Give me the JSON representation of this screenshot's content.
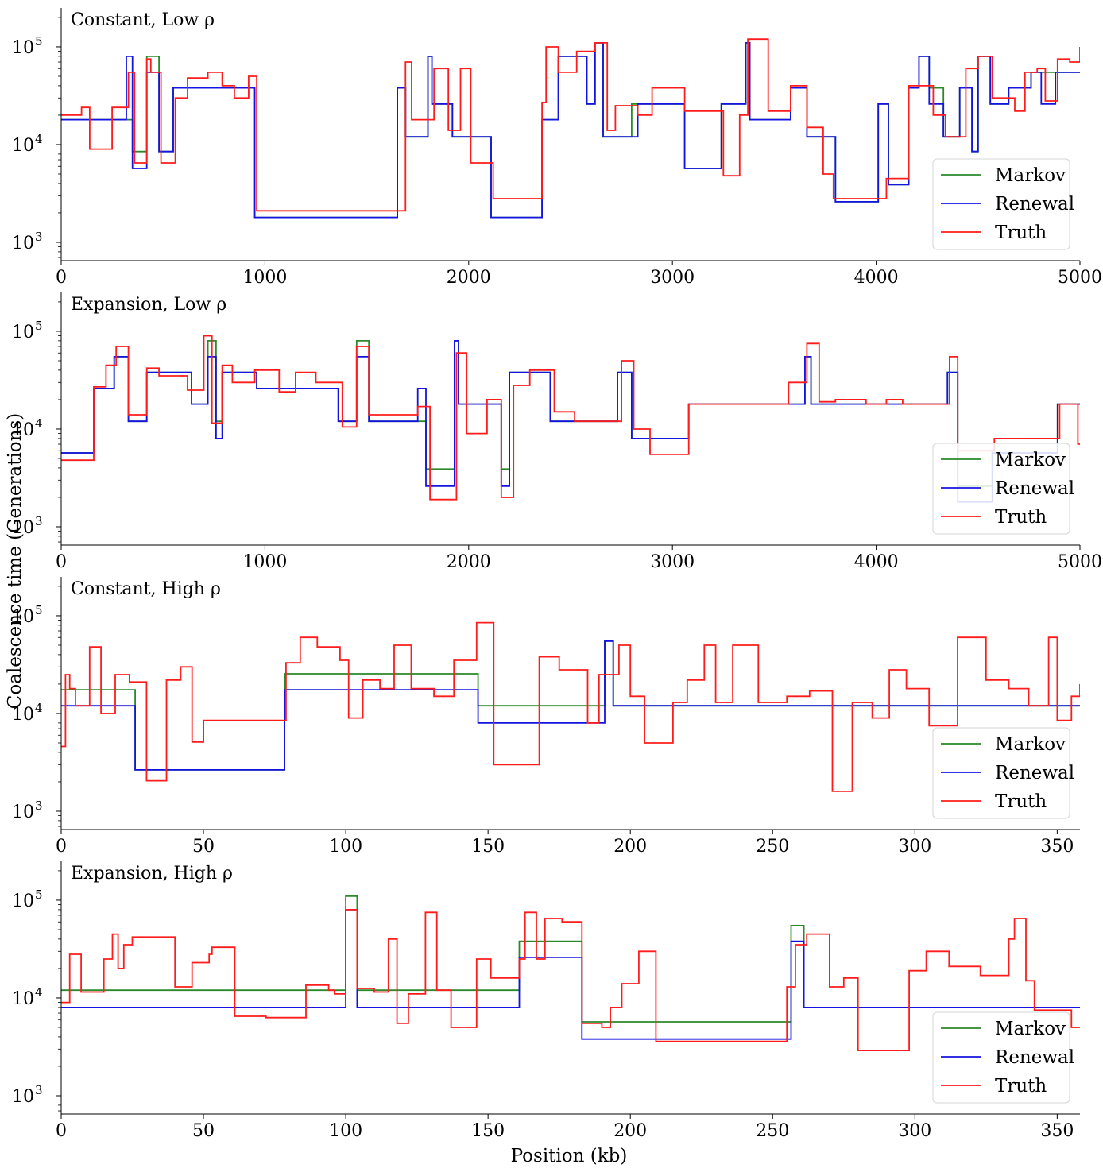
{
  "figure": {
    "ylabel": "Coalescence time (Generations)",
    "xlabel": "Position (kb)"
  },
  "legend_labels": [
    "Markov",
    "Renewal",
    "Truth"
  ],
  "colors": {
    "markov": "#2a8a2a",
    "renewal": "#1414e0",
    "truth": "#ff1c1c"
  },
  "chart_data": [
    {
      "type": "line",
      "title": "Constant, Low ρ",
      "xlim": [
        0,
        5000
      ],
      "ylim": [
        650,
        250000
      ],
      "yscale": "log",
      "xticks": [
        0,
        1000,
        2000,
        3000,
        4000,
        5000
      ],
      "ytick_labels": [
        "10",
        "10",
        "10"
      ],
      "ytick_exponents": [
        "3",
        "4",
        "5"
      ],
      "legend_position": "lower-right",
      "series": [
        {
          "name": "Markov",
          "x": [
            0,
            320,
            350,
            420,
            480,
            550,
            950,
            1650,
            1690,
            1800,
            1820,
            1920,
            2110,
            2360,
            2390,
            2440,
            2580,
            2620,
            2660,
            2780,
            2800,
            2830,
            3060,
            3240,
            3360,
            3380,
            3580,
            3660,
            3800,
            4010,
            4060,
            4160,
            4210,
            4260,
            4330,
            4410,
            4470,
            4500,
            4560,
            4650,
            4760,
            4810,
            4880,
            5000
          ],
          "y": [
            18000,
            18000,
            8500,
            80000,
            8500,
            38000,
            1800,
            38000,
            12000,
            80000,
            26000,
            12000,
            1800,
            18000,
            18000,
            80000,
            26000,
            110000,
            12000,
            12000,
            26000,
            26000,
            5700,
            26000,
            110000,
            18000,
            38000,
            12000,
            2600,
            26000,
            3900,
            38000,
            80000,
            38000,
            12000,
            38000,
            8500,
            80000,
            26000,
            38000,
            55000,
            55000,
            55000,
            55000
          ]
        },
        {
          "name": "Renewal",
          "x": [
            0,
            320,
            350,
            420,
            480,
            550,
            950,
            1650,
            1690,
            1800,
            1820,
            1920,
            2110,
            2360,
            2390,
            2440,
            2580,
            2620,
            2660,
            2780,
            2800,
            2830,
            3060,
            3240,
            3360,
            3380,
            3580,
            3660,
            3800,
            4010,
            4060,
            4160,
            4210,
            4260,
            4330,
            4410,
            4470,
            4500,
            4560,
            4650,
            4760,
            4810,
            4880,
            5000
          ],
          "y": [
            18000,
            80000,
            5700,
            55000,
            8500,
            38000,
            1800,
            38000,
            12000,
            80000,
            26000,
            12000,
            1800,
            18000,
            18000,
            80000,
            26000,
            110000,
            12000,
            12000,
            12000,
            26000,
            5700,
            26000,
            110000,
            18000,
            38000,
            12000,
            2600,
            26000,
            3900,
            38000,
            80000,
            26000,
            12000,
            38000,
            8500,
            80000,
            26000,
            38000,
            55000,
            26000,
            55000,
            55000
          ]
        },
        {
          "name": "Truth",
          "x": [
            0,
            100,
            140,
            250,
            330,
            360,
            420,
            440,
            490,
            560,
            620,
            720,
            790,
            850,
            920,
            960,
            1650,
            1690,
            1720,
            1830,
            1900,
            1960,
            2010,
            2120,
            2180,
            2360,
            2380,
            2440,
            2530,
            2620,
            2680,
            2720,
            2830,
            2900,
            3060,
            3250,
            3330,
            3370,
            3470,
            3580,
            3660,
            3740,
            3790,
            4000,
            4050,
            4160,
            4280,
            4340,
            4440,
            4500,
            4570,
            4680,
            4730,
            4790,
            4830,
            4890,
            4950,
            5000
          ],
          "y": [
            20000,
            24000,
            9000,
            24000,
            55000,
            6500,
            75000,
            55000,
            6500,
            30000,
            48000,
            55000,
            40000,
            30000,
            50000,
            2100,
            2100,
            70000,
            18000,
            60000,
            14000,
            60000,
            6500,
            2800,
            2800,
            27000,
            100000,
            55000,
            90000,
            110000,
            14000,
            25000,
            20000,
            38000,
            22000,
            4800,
            20000,
            120000,
            22000,
            40000,
            15000,
            5000,
            2800,
            2800,
            4500,
            40000,
            20000,
            12000,
            60000,
            80000,
            30000,
            22000,
            55000,
            60000,
            28000,
            75000,
            70000,
            100000
          ]
        }
      ]
    },
    {
      "type": "line",
      "title": "Expansion, Low ρ",
      "xlim": [
        0,
        5000
      ],
      "ylim": [
        650,
        250000
      ],
      "yscale": "log",
      "xticks": [
        0,
        1000,
        2000,
        3000,
        4000,
        5000
      ],
      "ytick_labels": [
        "10",
        "10",
        "10"
      ],
      "ytick_exponents": [
        "3",
        "4",
        "5"
      ],
      "legend_position": "lower-right",
      "series": [
        {
          "name": "Markov",
          "x": [
            0,
            160,
            260,
            330,
            420,
            640,
            720,
            760,
            790,
            960,
            1360,
            1450,
            1510,
            1750,
            1790,
            1930,
            1950,
            2160,
            2200,
            2400,
            2730,
            2800,
            2820,
            3080,
            3650,
            3680,
            4350,
            4400,
            4570,
            4890,
            5000
          ],
          "y": [
            5700,
            26000,
            55000,
            12000,
            38000,
            18000,
            80000,
            12000,
            38000,
            26000,
            12000,
            80000,
            12000,
            12000,
            3900,
            80000,
            18000,
            3900,
            38000,
            12000,
            38000,
            8000,
            8000,
            18000,
            55000,
            18000,
            38000,
            2600,
            5700,
            18000,
            18000
          ]
        },
        {
          "name": "Renewal",
          "x": [
            0,
            160,
            260,
            330,
            420,
            640,
            720,
            760,
            790,
            960,
            1360,
            1450,
            1510,
            1750,
            1790,
            1930,
            1950,
            2160,
            2200,
            2400,
            2730,
            2800,
            2820,
            3080,
            3650,
            3680,
            4350,
            4400,
            4570,
            4890,
            5000
          ],
          "y": [
            5700,
            26000,
            55000,
            12000,
            38000,
            18000,
            55000,
            8000,
            38000,
            26000,
            12000,
            55000,
            12000,
            26000,
            2600,
            80000,
            18000,
            2600,
            38000,
            12000,
            38000,
            8000,
            8000,
            18000,
            55000,
            18000,
            38000,
            1800,
            5700,
            18000,
            18000
          ]
        },
        {
          "name": "Truth",
          "x": [
            0,
            160,
            220,
            270,
            330,
            420,
            480,
            620,
            700,
            740,
            790,
            840,
            950,
            1070,
            1150,
            1250,
            1380,
            1450,
            1510,
            1750,
            1810,
            1940,
            1990,
            2090,
            2160,
            2220,
            2300,
            2420,
            2520,
            2750,
            2810,
            2890,
            3080,
            3170,
            3400,
            3570,
            3660,
            3720,
            3800,
            3950,
            4050,
            4130,
            4360,
            4400,
            4580,
            4900,
            4990,
            5000
          ],
          "y": [
            4800,
            27000,
            45000,
            70000,
            14000,
            42000,
            35000,
            25000,
            90000,
            11500,
            45000,
            30000,
            40000,
            24000,
            38000,
            30000,
            10500,
            70000,
            14000,
            17000,
            1900,
            60000,
            9000,
            20000,
            2000,
            28000,
            40000,
            15000,
            12000,
            50000,
            10000,
            5500,
            18000,
            18000,
            18000,
            30000,
            75000,
            19000,
            20000,
            18000,
            20000,
            18000,
            55000,
            6000,
            8000,
            18000,
            7000,
            7000
          ]
        }
      ]
    },
    {
      "type": "line",
      "title": "Constant, High ρ",
      "xlim": [
        0,
        358
      ],
      "ylim": [
        650,
        250000
      ],
      "yscale": "log",
      "xticks": [
        0,
        50,
        100,
        150,
        200,
        250,
        300,
        350
      ],
      "ytick_labels": [
        "10",
        "10",
        "10"
      ],
      "ytick_exponents": [
        "3",
        "4",
        "5"
      ],
      "legend_position": "lower-right",
      "series": [
        {
          "name": "Markov",
          "x": [
            0,
            26,
            78.5,
            146.5,
            191,
            194,
            358
          ],
          "y": [
            17500,
            2650,
            25500,
            12000,
            55000,
            12000,
            12000
          ]
        },
        {
          "name": "Renewal",
          "x": [
            0,
            26,
            78.5,
            146.5,
            191,
            194,
            358
          ],
          "y": [
            12000,
            2650,
            17500,
            8000,
            55000,
            12000,
            12000
          ]
        },
        {
          "name": "Truth",
          "x": [
            0,
            1.5,
            3,
            5,
            10,
            14,
            19,
            24,
            30,
            37,
            42,
            46,
            50,
            75,
            79,
            84,
            90,
            98,
            101,
            106,
            112,
            117,
            123,
            131,
            138,
            146,
            152,
            160,
            168,
            175,
            185,
            189,
            196,
            200,
            205,
            215,
            220,
            226,
            230,
            236,
            245,
            255,
            263,
            271,
            278,
            285,
            291,
            297,
            305,
            315,
            325,
            333,
            340,
            347,
            350,
            355,
            358
          ],
          "y": [
            4600,
            25000,
            18000,
            12000,
            48000,
            10000,
            25000,
            21000,
            2050,
            22000,
            30000,
            5100,
            8500,
            8500,
            33000,
            60000,
            48000,
            35000,
            9000,
            22000,
            18000,
            50000,
            18000,
            15000,
            35000,
            85000,
            3000,
            3000,
            38000,
            28000,
            8000,
            25000,
            50000,
            15000,
            5000,
            13000,
            22000,
            50000,
            13000,
            50000,
            13000,
            15000,
            17000,
            1600,
            13000,
            9000,
            28000,
            18000,
            7500,
            60000,
            22000,
            18000,
            12000,
            60000,
            8500,
            15000,
            20000
          ]
        }
      ]
    },
    {
      "type": "line",
      "title": "Expansion, High ρ",
      "xlim": [
        0,
        358
      ],
      "ylim": [
        650,
        250000
      ],
      "yscale": "log",
      "xticks": [
        0,
        50,
        100,
        150,
        200,
        250,
        300,
        350
      ],
      "ytick_labels": [
        "10",
        "10",
        "10"
      ],
      "ytick_exponents": [
        "3",
        "4",
        "5"
      ],
      "legend_position": "lower-right",
      "series": [
        {
          "name": "Markov",
          "x": [
            0,
            100,
            104,
            161,
            183,
            256.5,
            261,
            358
          ],
          "y": [
            12000,
            110000,
            12000,
            38000,
            5700,
            55000,
            8000,
            8000
          ]
        },
        {
          "name": "Renewal",
          "x": [
            0,
            100,
            104,
            161,
            183,
            256.5,
            261,
            358
          ],
          "y": [
            8000,
            80000,
            8000,
            26000,
            3800,
            38000,
            8000,
            8000
          ]
        },
        {
          "name": "Truth",
          "x": [
            0,
            3,
            7,
            15,
            18,
            20,
            22,
            25,
            40,
            46,
            52,
            53,
            61,
            72,
            86,
            94,
            96,
            100,
            104,
            110,
            115,
            118,
            122,
            128,
            132,
            137,
            146,
            151,
            161,
            163,
            167,
            170,
            176,
            183,
            190,
            193,
            197,
            203,
            209,
            230,
            255,
            258,
            262,
            270,
            275,
            280,
            298,
            304,
            312,
            323,
            333,
            335,
            339,
            342,
            355,
            358
          ],
          "y": [
            9000,
            28000,
            11500,
            25000,
            45000,
            20000,
            35000,
            42000,
            13000,
            23000,
            28000,
            33000,
            6500,
            6300,
            13500,
            12000,
            11000,
            80000,
            12500,
            11500,
            40000,
            5500,
            11000,
            75000,
            12000,
            5000,
            25000,
            16000,
            25000,
            75000,
            25000,
            65000,
            60000,
            5500,
            5000,
            8000,
            14000,
            30000,
            3600,
            3600,
            13000,
            35000,
            45000,
            13000,
            16000,
            2900,
            19000,
            30000,
            21000,
            17000,
            40000,
            65000,
            15000,
            7500,
            5000,
            5000
          ]
        }
      ]
    }
  ]
}
